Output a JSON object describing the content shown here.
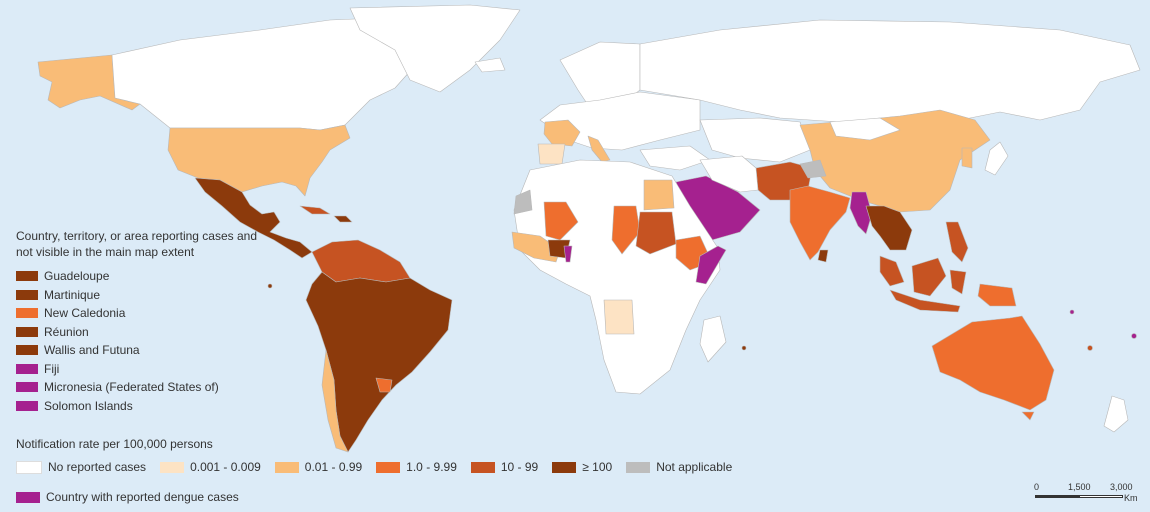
{
  "colors": {
    "ocean": "#dcebf7",
    "no_cases": "#ffffff",
    "r0001": "#fde3c4",
    "r001": "#f9bc77",
    "r1": "#ee6e2e",
    "r10": "#c65322",
    "r100": "#8c3a0c",
    "na": "#bdbdbd",
    "dengue": "#a5218f",
    "border": "#b8b8b8"
  },
  "small_areas": {
    "title": "Country, territory, or area reporting cases and not visible in the main map extent",
    "items": [
      {
        "label": "Guadeloupe",
        "color": "#8c3a0c"
      },
      {
        "label": "Martinique",
        "color": "#8c3a0c"
      },
      {
        "label": "New Caledonia",
        "color": "#ee6e2e"
      },
      {
        "label": "Réunion",
        "color": "#8c3a0c"
      },
      {
        "label": "Wallis and Futuna",
        "color": "#8c3a0c"
      },
      {
        "label": "Fiji",
        "color": "#a5218f"
      },
      {
        "label": "Micronesia (Federated States of)",
        "color": "#a5218f"
      },
      {
        "label": "Solomon Islands",
        "color": "#a5218f"
      }
    ]
  },
  "rate_legend": {
    "title": "Notification rate per 100,000 persons",
    "items": [
      {
        "label": "No reported cases",
        "color": "#ffffff"
      },
      {
        "label": "0.001 - 0.009",
        "color": "#fde3c4"
      },
      {
        "label": "0.01 - 0.99",
        "color": "#f9bc77"
      },
      {
        "label": "1.0 - 9.99",
        "color": "#ee6e2e"
      },
      {
        "label": "10 - 99",
        "color": "#c65322"
      },
      {
        "label": "≥ 100",
        "color": "#8c3a0c"
      },
      {
        "label": "Not applicable",
        "color": "#bdbdbd"
      }
    ]
  },
  "dengue_legend": {
    "label": "Country with reported dengue cases",
    "color": "#a5218f"
  },
  "scale_bar": {
    "labels": [
      "0",
      "1,500",
      "3,000"
    ],
    "unit": "Km"
  }
}
